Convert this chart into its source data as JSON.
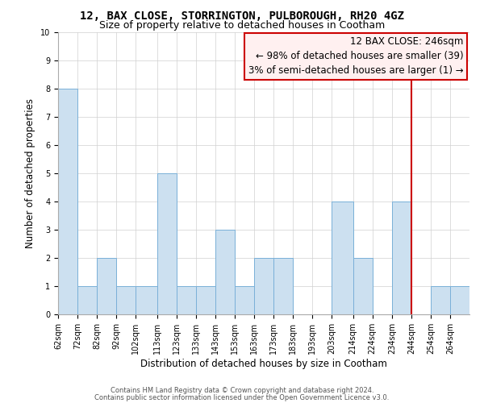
{
  "title": "12, BAX CLOSE, STORRINGTON, PULBOROUGH, RH20 4GZ",
  "subtitle": "Size of property relative to detached houses in Cootham",
  "xlabel": "Distribution of detached houses by size in Cootham",
  "ylabel": "Number of detached properties",
  "footer1": "Contains HM Land Registry data © Crown copyright and database right 2024.",
  "footer2": "Contains public sector information licensed under the Open Government Licence v3.0.",
  "bin_edges": [
    62,
    72,
    82,
    92,
    102,
    113,
    123,
    133,
    143,
    153,
    163,
    173,
    183,
    193,
    203,
    214,
    224,
    234,
    244,
    254,
    264,
    274
  ],
  "bar_heights": [
    8,
    1,
    2,
    1,
    1,
    5,
    1,
    1,
    3,
    1,
    2,
    2,
    0,
    0,
    4,
    2,
    0,
    4,
    0,
    1,
    1,
    0
  ],
  "bar_color": "#cce0f0",
  "bar_edge_color": "#7ab0d8",
  "grid_color": "#d0d0d0",
  "vline_x": 244,
  "vline_color": "#cc0000",
  "ylim": [
    0,
    10
  ],
  "yticks": [
    0,
    1,
    2,
    3,
    4,
    5,
    6,
    7,
    8,
    9,
    10
  ],
  "annotation_title": "12 BAX CLOSE: 246sqm",
  "annotation_line1": "← 98% of detached houses are smaller (39)",
  "annotation_line2": "3% of semi-detached houses are larger (1) →",
  "annotation_box_color": "#fff0f0",
  "annotation_border_color": "#cc0000",
  "title_fontsize": 10,
  "subtitle_fontsize": 9,
  "axis_label_fontsize": 8.5,
  "tick_fontsize": 7,
  "annotation_fontsize": 8.5,
  "footer_fontsize": 6
}
